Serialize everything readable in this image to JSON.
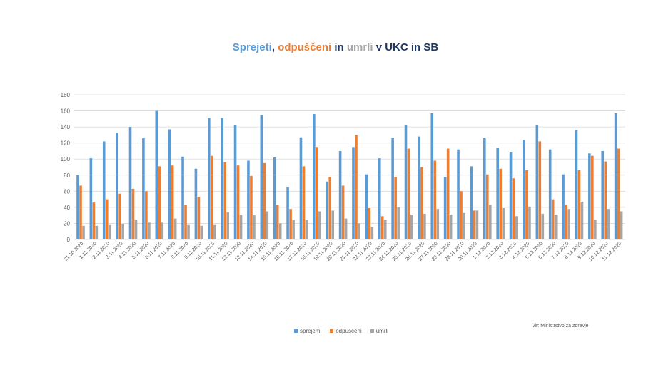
{
  "title": {
    "part1": "Sprejeti",
    "sep1": ", ",
    "part2": "odpuščeni",
    "sep2": " in ",
    "part3": "umrli",
    "part4": " v UKC in SB"
  },
  "legend": {
    "series1": "sprejemi",
    "series2": "odpuščeni",
    "series3": "umrli"
  },
  "source": "vir: Ministrstvo za zdravje",
  "colors": {
    "series1": "#5B9BD5",
    "series2": "#ED7D31",
    "series3": "#A5A5A5",
    "grid": "#D9D9D9",
    "axis_text": "#595959"
  },
  "chart_data": {
    "type": "bar",
    "ylim": [
      0,
      180
    ],
    "yticks": [
      0,
      20,
      40,
      60,
      80,
      100,
      120,
      140,
      160,
      180
    ],
    "grid": true,
    "legend_position": "bottom",
    "categories": [
      "31.10.2020",
      "1.11.2020",
      "2.11.2020",
      "3.11.2020",
      "4.11.2020",
      "5.11.2020",
      "6.11.2020",
      "7.11.2020",
      "8.11.2020",
      "9.11.2020",
      "10.11.2020",
      "11.11.2020",
      "12.11.2020",
      "13.11.2020",
      "14.11.2020",
      "15.11.2020",
      "16.11.2020",
      "17.11.2020",
      "18.11.2020",
      "19.11.2020",
      "20.11.2020",
      "21.11.2020",
      "22.11.2020",
      "23.11.2020",
      "24.11.2020",
      "25.11.2020",
      "26.11.2020",
      "27.11.2020",
      "28.11.2020",
      "29.11.2020",
      "30.11.2020",
      "1.12.2020",
      "2.12.2020",
      "3.12.2020",
      "4.12.2020",
      "5.12.2020",
      "6.12.2020",
      "7.12.2020",
      "8.12.2020",
      "9.12.2020",
      "10.12.2020",
      "11.12.2020"
    ],
    "series": [
      {
        "name": "sprejemi",
        "values": [
          80,
          101,
          122,
          133,
          140,
          126,
          160,
          137,
          103,
          88,
          151,
          151,
          142,
          98,
          155,
          102,
          65,
          127,
          156,
          72,
          110,
          115,
          81,
          101,
          126,
          142,
          128,
          157,
          78,
          112,
          91,
          126,
          114,
          109,
          124,
          142,
          112,
          81,
          136,
          107,
          110,
          157
        ]
      },
      {
        "name": "odpuščeni",
        "values": [
          67,
          46,
          50,
          57,
          63,
          60,
          91,
          92,
          43,
          53,
          104,
          96,
          92,
          79,
          95,
          43,
          38,
          91,
          115,
          78,
          67,
          130,
          39,
          29,
          78,
          113,
          90,
          98,
          113,
          60,
          36,
          81,
          88,
          76,
          86,
          122,
          50,
          43,
          86,
          104,
          97,
          113
        ]
      },
      {
        "name": "umrli",
        "values": [
          17,
          17,
          18,
          19,
          24,
          21,
          21,
          26,
          18,
          17,
          18,
          34,
          31,
          30,
          35,
          20,
          24,
          24,
          35,
          36,
          26,
          20,
          16,
          24,
          40,
          31,
          32,
          38,
          31,
          33,
          36,
          43,
          39,
          29,
          41,
          32,
          31,
          38,
          47,
          24,
          38,
          35
        ]
      }
    ]
  }
}
